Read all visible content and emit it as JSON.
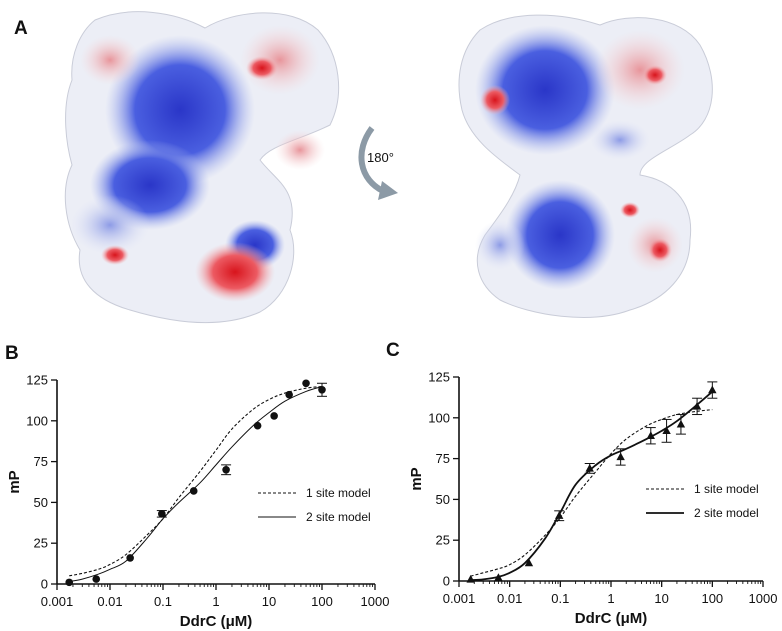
{
  "panels": {
    "a": "A",
    "b": "B",
    "c": "C"
  },
  "rotation_label": "180°",
  "structure_colors": {
    "positive": "#2d3fcf",
    "negative": "#e01a22",
    "neutral": "#f2f2f2"
  },
  "chart_data": [
    {
      "type": "scatter",
      "panel": "B",
      "xlabel": "DdrC (μM)",
      "ylabel": "mP",
      "xscale": "log",
      "xlim": [
        0.001,
        1000
      ],
      "ylim": [
        0,
        125
      ],
      "xticks": [
        0.001,
        0.01,
        0.1,
        1,
        10,
        100,
        1000
      ],
      "xticklabels": [
        "0.001",
        "0.01",
        "0.1",
        "1",
        "10",
        "100",
        "1000"
      ],
      "yticks": [
        0,
        25,
        50,
        75,
        100,
        125
      ],
      "yticklabels": [
        "0",
        "25",
        "50",
        "75",
        "100",
        "125"
      ],
      "marker": "circle",
      "points": {
        "x": [
          0.0017,
          0.0055,
          0.024,
          0.095,
          0.38,
          1.55,
          6.1,
          12.5,
          24,
          50,
          100
        ],
        "y": [
          1,
          3,
          16,
          43,
          57,
          70,
          97,
          103,
          116,
          123,
          119
        ],
        "err": [
          0,
          0,
          0,
          2,
          0,
          3,
          0,
          0,
          0,
          0,
          4
        ]
      },
      "series": [
        {
          "name": "1 site model",
          "style": "dashed",
          "x": [
            0.0017,
            0.003,
            0.006,
            0.01,
            0.02,
            0.05,
            0.1,
            0.2,
            0.5,
            1,
            2,
            5,
            10,
            20,
            50,
            100
          ],
          "y": [
            5,
            6.5,
            9,
            12,
            18,
            30,
            40,
            53,
            69,
            82,
            95,
            107,
            113,
            117,
            120,
            121
          ]
        },
        {
          "name": "2 site model",
          "style": "solid",
          "x": [
            0.0017,
            0.003,
            0.006,
            0.01,
            0.02,
            0.05,
            0.1,
            0.2,
            0.5,
            1,
            2,
            5,
            10,
            20,
            50,
            100
          ],
          "y": [
            1.5,
            3,
            6,
            9,
            14,
            28,
            40,
            50,
            62,
            73,
            84,
            97,
            105,
            112,
            118,
            121
          ]
        }
      ],
      "legend_position": "center-right"
    },
    {
      "type": "scatter",
      "panel": "C",
      "xlabel": "DdrC (μM)",
      "ylabel": "mP",
      "xscale": "log",
      "xlim": [
        0.001,
        1000
      ],
      "ylim": [
        0,
        125
      ],
      "xticks": [
        0.001,
        0.01,
        0.1,
        1,
        10,
        100,
        1000
      ],
      "xticklabels": [
        "0.001",
        "0.01",
        "0.1",
        "1",
        "10",
        "100",
        "1000"
      ],
      "yticks": [
        0,
        25,
        50,
        75,
        100,
        125
      ],
      "yticklabels": [
        "0",
        "25",
        "50",
        "75",
        "100",
        "125"
      ],
      "marker": "triangle",
      "points": {
        "x": [
          0.0017,
          0.006,
          0.024,
          0.095,
          0.38,
          1.55,
          6.1,
          12.5,
          24,
          50,
          100
        ],
        "y": [
          1,
          2,
          11,
          40,
          69,
          76,
          89,
          92,
          96,
          107,
          117
        ],
        "err": [
          0,
          0,
          0,
          3,
          3,
          5,
          5,
          7,
          6,
          5,
          5
        ]
      },
      "series": [
        {
          "name": "1 site model",
          "style": "dashed",
          "x": [
            0.0017,
            0.003,
            0.006,
            0.01,
            0.02,
            0.05,
            0.1,
            0.2,
            0.5,
            1,
            2,
            5,
            10,
            20,
            50,
            100
          ],
          "y": [
            3,
            5,
            7.5,
            10,
            16,
            28,
            39,
            52,
            67,
            78,
            87,
            95,
            99,
            102,
            104,
            105
          ]
        },
        {
          "name": "2 site model",
          "style": "solid",
          "x": [
            0.0017,
            0.003,
            0.006,
            0.01,
            0.02,
            0.05,
            0.1,
            0.2,
            0.5,
            1,
            2,
            5,
            10,
            20,
            50,
            100
          ],
          "y": [
            0.5,
            1,
            2.5,
            5,
            11,
            26,
            42,
            59,
            71,
            77,
            81,
            87,
            92,
            98,
            108,
            116
          ]
        }
      ],
      "legend_position": "center-right"
    }
  ]
}
